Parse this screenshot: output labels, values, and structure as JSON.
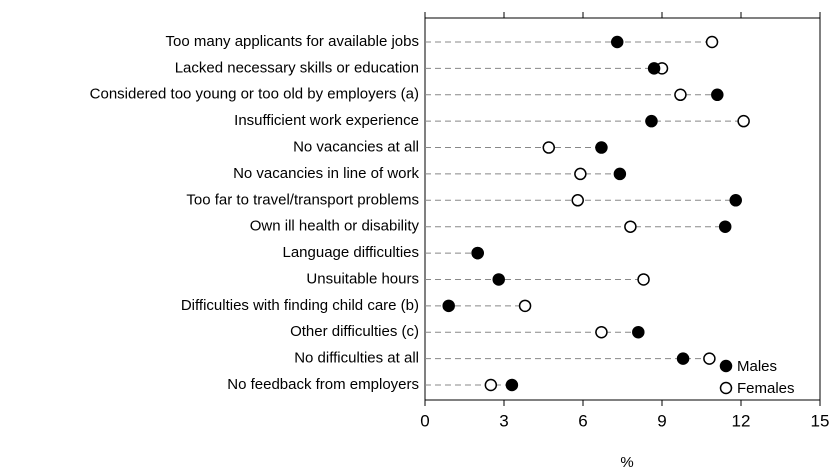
{
  "chart_data": {
    "type": "dot",
    "categories": [
      "Too many applicants for available jobs",
      "Lacked necessary skills or education",
      "Considered too young or too old by employers (a)",
      "Insufficient work experience",
      "No vacancies at all",
      "No vacancies in line of work",
      "Too far to travel/transport problems",
      "Own ill health or disability",
      "Language difficulties",
      "Unsuitable hours",
      "Difficulties with finding child care (b)",
      "Other difficulties (c)",
      "No difficulties at all",
      "No feedback from employers"
    ],
    "series": [
      {
        "name": "Males",
        "color": "#000000",
        "values": [
          7.3,
          8.7,
          11.1,
          8.6,
          6.7,
          7.4,
          11.8,
          11.4,
          2.0,
          2.8,
          0.9,
          8.1,
          9.8,
          3.3
        ]
      },
      {
        "name": "Females",
        "color": "#ffffff",
        "values": [
          10.9,
          9.0,
          9.7,
          12.1,
          4.7,
          5.9,
          5.8,
          7.8,
          2.0,
          8.3,
          3.8,
          6.7,
          10.8,
          2.5
        ]
      }
    ],
    "xlabel": "%",
    "xlim": [
      0,
      15
    ],
    "xticks": [
      0,
      3,
      6,
      9,
      12,
      15
    ],
    "legend": "lower right"
  }
}
